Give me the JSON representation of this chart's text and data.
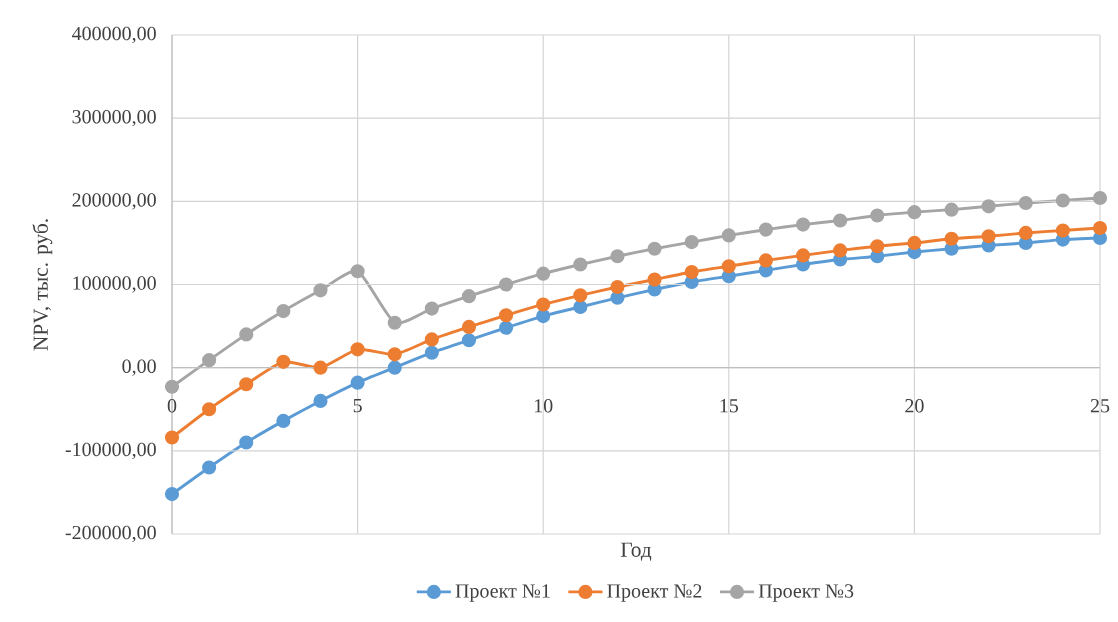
{
  "chart_data": {
    "type": "line",
    "xlabel": "Год",
    "ylabel": "NPV, тыс. руб.",
    "x": [
      0,
      1,
      2,
      3,
      4,
      5,
      6,
      7,
      8,
      9,
      10,
      11,
      12,
      13,
      14,
      15,
      16,
      17,
      18,
      19,
      20,
      21,
      22,
      23,
      24,
      25
    ],
    "xlim": [
      0,
      25
    ],
    "xticks": [
      0,
      5,
      10,
      15,
      20,
      25
    ],
    "ylim": [
      -200000,
      400000
    ],
    "yticks": [
      {
        "value": -200000,
        "label": "-200000,00"
      },
      {
        "value": -100000,
        "label": "-100000,00"
      },
      {
        "value": 0,
        "label": "0,00"
      },
      {
        "value": 100000,
        "label": "100000,00"
      },
      {
        "value": 200000,
        "label": "200000,00"
      },
      {
        "value": 300000,
        "label": "300000,00"
      },
      {
        "value": 400000,
        "label": "400000,00"
      }
    ],
    "grid": true,
    "legend": "bottom",
    "marker": "circle",
    "line_style": "solid",
    "series": [
      {
        "name": "Проект №1",
        "color": "#5b9bd5",
        "values": [
          -152000,
          -120000,
          -90000,
          -64000,
          -40000,
          -18000,
          0,
          18000,
          33000,
          48000,
          62000,
          73000,
          84000,
          94000,
          103000,
          110000,
          117000,
          124000,
          130000,
          134000,
          139000,
          143000,
          147000,
          150000,
          154000,
          156000
        ]
      },
      {
        "name": "Проект №2",
        "color": "#ed7d31",
        "values": [
          -84000,
          -50000,
          -20000,
          7000,
          0,
          22000,
          16000,
          34000,
          49000,
          63000,
          76000,
          87000,
          97000,
          106000,
          115000,
          122000,
          129000,
          135000,
          141000,
          146000,
          150000,
          155000,
          158000,
          162000,
          165000,
          168000
        ]
      },
      {
        "name": "Проект №3",
        "color": "#a5a5a5",
        "values": [
          -23000,
          9000,
          40000,
          68000,
          93000,
          116000,
          54000,
          71000,
          86000,
          100000,
          113000,
          124000,
          134000,
          143000,
          151000,
          159000,
          166000,
          172000,
          177000,
          183000,
          187000,
          190000,
          194000,
          198000,
          201000,
          204000
        ]
      }
    ]
  }
}
